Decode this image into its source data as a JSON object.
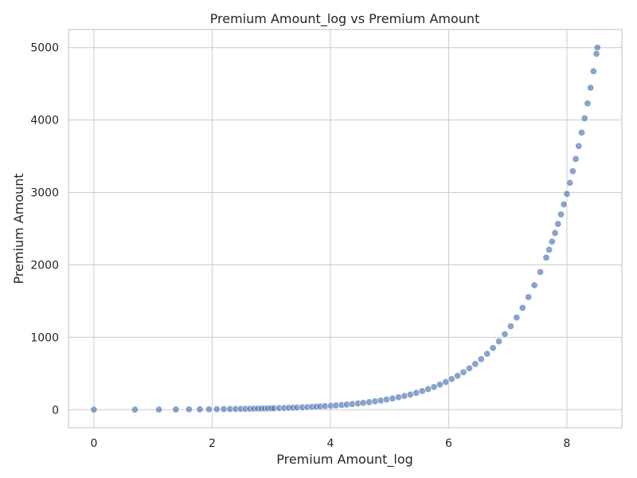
{
  "chart_data": {
    "type": "scatter",
    "title": "Premium Amount_log vs Premium Amount",
    "xlabel": "Premium Amount_log",
    "ylabel": "Premium Amount",
    "xlim": [
      -0.43,
      8.93
    ],
    "ylim": [
      -250,
      5250
    ],
    "xticks": [
      0,
      2,
      4,
      6,
      8
    ],
    "yticks": [
      0,
      1000,
      2000,
      3000,
      4000,
      5000
    ],
    "x_tick_labels": [
      "0",
      "2",
      "4",
      "6",
      "8"
    ],
    "y_tick_labels": [
      "0",
      "1000",
      "2000",
      "3000",
      "4000",
      "5000"
    ],
    "grid": true,
    "color": "#4c72b0",
    "relationship": "Premium Amount = exp(Premium Amount_log) - 1",
    "series": [
      {
        "points": [
          [
            0.0,
            0
          ],
          [
            0.693,
            1
          ],
          [
            1.099,
            2
          ],
          [
            1.386,
            3
          ],
          [
            1.609,
            4
          ],
          [
            1.792,
            5
          ],
          [
            1.946,
            6
          ],
          [
            2.079,
            7
          ],
          [
            2.197,
            8
          ],
          [
            2.303,
            9
          ],
          [
            2.398,
            10
          ],
          [
            2.485,
            11
          ],
          [
            2.565,
            12
          ],
          [
            2.639,
            13
          ],
          [
            2.708,
            14
          ],
          [
            2.773,
            15
          ],
          [
            2.833,
            16
          ],
          [
            2.89,
            17
          ],
          [
            2.944,
            18
          ],
          [
            2.996,
            19
          ],
          [
            3.045,
            20
          ],
          [
            3.135,
            22
          ],
          [
            3.219,
            24
          ],
          [
            3.296,
            26
          ],
          [
            3.367,
            28
          ],
          [
            3.434,
            30
          ],
          [
            3.526,
            33
          ],
          [
            3.611,
            36
          ],
          [
            3.689,
            39
          ],
          [
            3.761,
            42
          ],
          [
            3.829,
            45
          ],
          [
            3.912,
            49
          ],
          [
            4.007,
            54
          ],
          [
            4.094,
            59
          ],
          [
            4.19,
            65
          ],
          [
            4.277,
            71
          ],
          [
            4.369,
            78
          ],
          [
            4.466,
            86
          ],
          [
            4.554,
            94
          ],
          [
            4.654,
            104
          ],
          [
            4.754,
            115
          ],
          [
            4.852,
            127
          ],
          [
            4.949,
            140
          ],
          [
            5.05,
            155
          ],
          [
            5.153,
            172
          ],
          [
            5.252,
            190
          ],
          [
            5.352,
            210
          ],
          [
            5.451,
            232
          ],
          [
            5.553,
            257
          ],
          [
            5.652,
            284
          ],
          [
            5.753,
            314
          ],
          [
            5.852,
            347
          ],
          [
            5.951,
            383
          ],
          [
            6.051,
            424
          ],
          [
            6.15,
            468
          ],
          [
            6.25,
            517
          ],
          [
            6.35,
            572
          ],
          [
            6.45,
            632
          ],
          [
            6.55,
            698
          ],
          [
            6.65,
            772
          ],
          [
            6.75,
            853
          ],
          [
            6.85,
            943
          ],
          [
            6.95,
            1042
          ],
          [
            7.05,
            1152
          ],
          [
            7.15,
            1273
          ],
          [
            7.25,
            1407
          ],
          [
            7.35,
            1555
          ],
          [
            7.45,
            1719
          ],
          [
            7.55,
            1900
          ],
          [
            7.65,
            2100
          ],
          [
            7.7,
            2208
          ],
          [
            7.75,
            2321
          ],
          [
            7.8,
            2440
          ],
          [
            7.85,
            2565
          ],
          [
            7.9,
            2697
          ],
          [
            7.95,
            2835
          ],
          [
            8.0,
            2980
          ],
          [
            8.05,
            3133
          ],
          [
            8.1,
            3293
          ],
          [
            8.15,
            3462
          ],
          [
            8.2,
            3640
          ],
          [
            8.25,
            3826
          ],
          [
            8.3,
            4023
          ],
          [
            8.35,
            4229
          ],
          [
            8.4,
            4446
          ],
          [
            8.45,
            4674
          ],
          [
            8.5,
            4914
          ],
          [
            8.517,
            5000
          ]
        ]
      }
    ]
  }
}
